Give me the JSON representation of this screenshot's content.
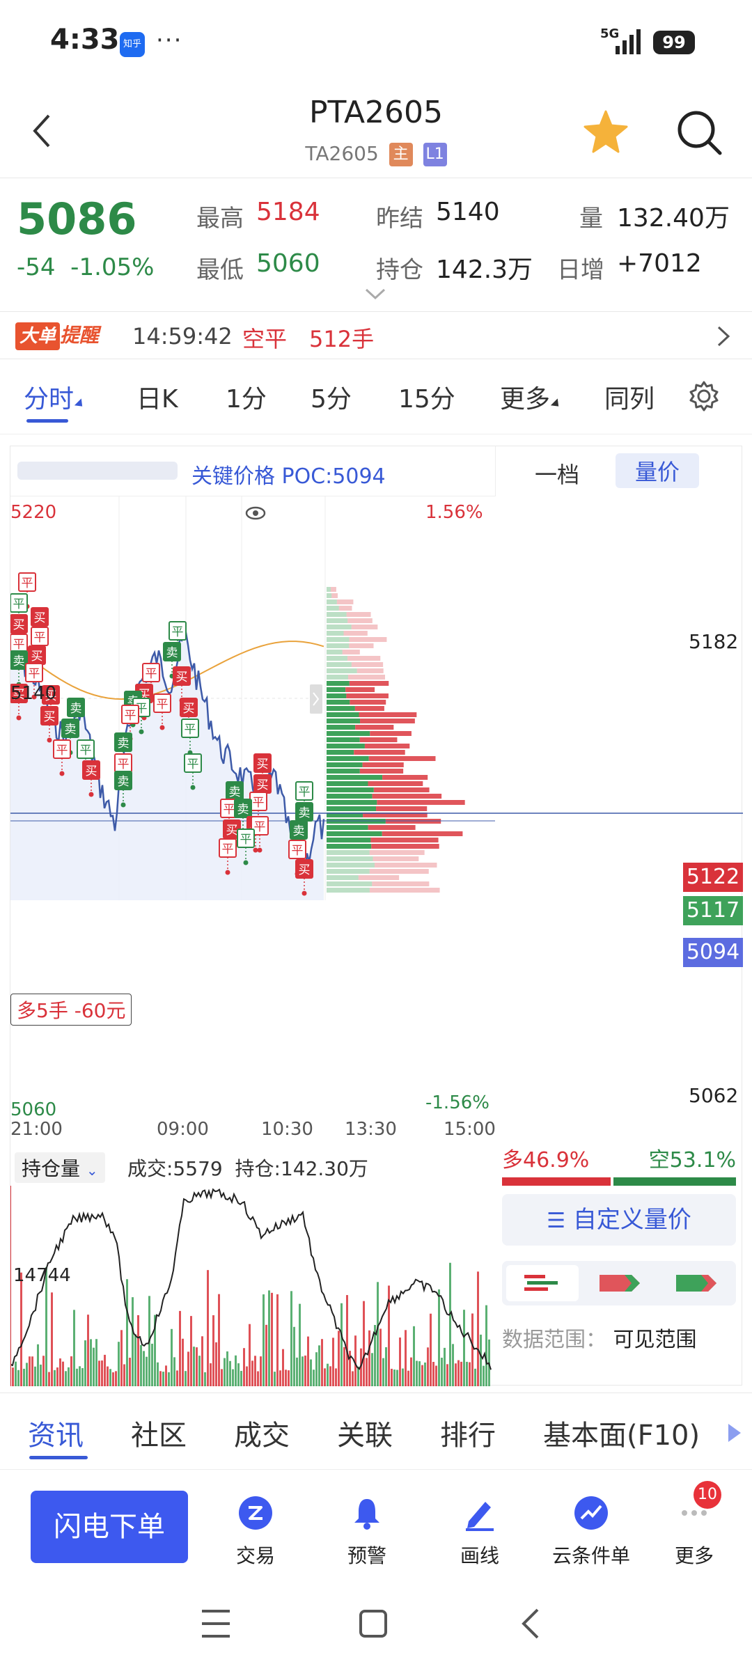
{
  "status": {
    "time": "4:33",
    "app_badge": "知乎",
    "dots": "···",
    "network": "5G",
    "battery": "99"
  },
  "header": {
    "title": "PTA2605",
    "code": "TA2605",
    "tag_main": "主",
    "tag_l1": "L1"
  },
  "quote": {
    "price": "5086",
    "change": "-54",
    "change_pct": "-1.05%",
    "high_label": "最高",
    "high": "5184",
    "low_label": "最低",
    "low": "5060",
    "prev_settle_label": "昨结",
    "prev_settle": "5140",
    "oi_label": "持仓",
    "oi": "142.3万",
    "volume_label": "量",
    "volume": "132.40万",
    "daily_inc_label": "日增",
    "daily_inc": "+7012"
  },
  "alert": {
    "badge_a": "大单",
    "badge_b": "提醒",
    "time": "14:59:42",
    "type": "空平",
    "qty": "512手"
  },
  "tabs": [
    "分时",
    "日K",
    "1分",
    "5分",
    "15分",
    "更多",
    "同列"
  ],
  "chart": {
    "poc_label": "关键价格 POC:5094",
    "right_tabs": [
      "一档",
      "量价"
    ],
    "price_top": "5220",
    "price_mid": "5140",
    "price_bottom": "5060",
    "pct_top": "1.56%",
    "pct_bottom": "-1.56%",
    "time_labels": [
      "21:00",
      "09:00",
      "10:30",
      "13:30",
      "15:00"
    ],
    "position_box": "多5手  -60元",
    "profile_labels": {
      "high": "5182",
      "low": "5062",
      "p1": "5122",
      "p2": "5117",
      "poc": "5094"
    },
    "marker_labels": {
      "buy": "买",
      "sell": "卖",
      "close": "平"
    },
    "colors": {
      "up": "#d9323a",
      "down": "#2d8a48",
      "accent": "#3859d6",
      "avg_line": "#e9a23b",
      "price_line": "#3d5aa8"
    }
  },
  "volume": {
    "selector": "持仓量",
    "trades": "成交:5579",
    "hold": "持仓:142.30万",
    "axis_label": "14744"
  },
  "ratio": {
    "long": "多46.9%",
    "short": "空53.1%",
    "long_pct": 46.9,
    "short_pct": 53.1
  },
  "custom_btn": "自定义量价",
  "range": {
    "label": "数据范围：",
    "value": "可见范围"
  },
  "bottom_tabs": [
    "资讯",
    "社区",
    "成交",
    "关联",
    "排行",
    "基本面(F10)"
  ],
  "actions": {
    "flash": "闪电下单",
    "items": [
      "交易",
      "预警",
      "画线",
      "云条件单",
      "更多"
    ],
    "more_badge": "10"
  }
}
